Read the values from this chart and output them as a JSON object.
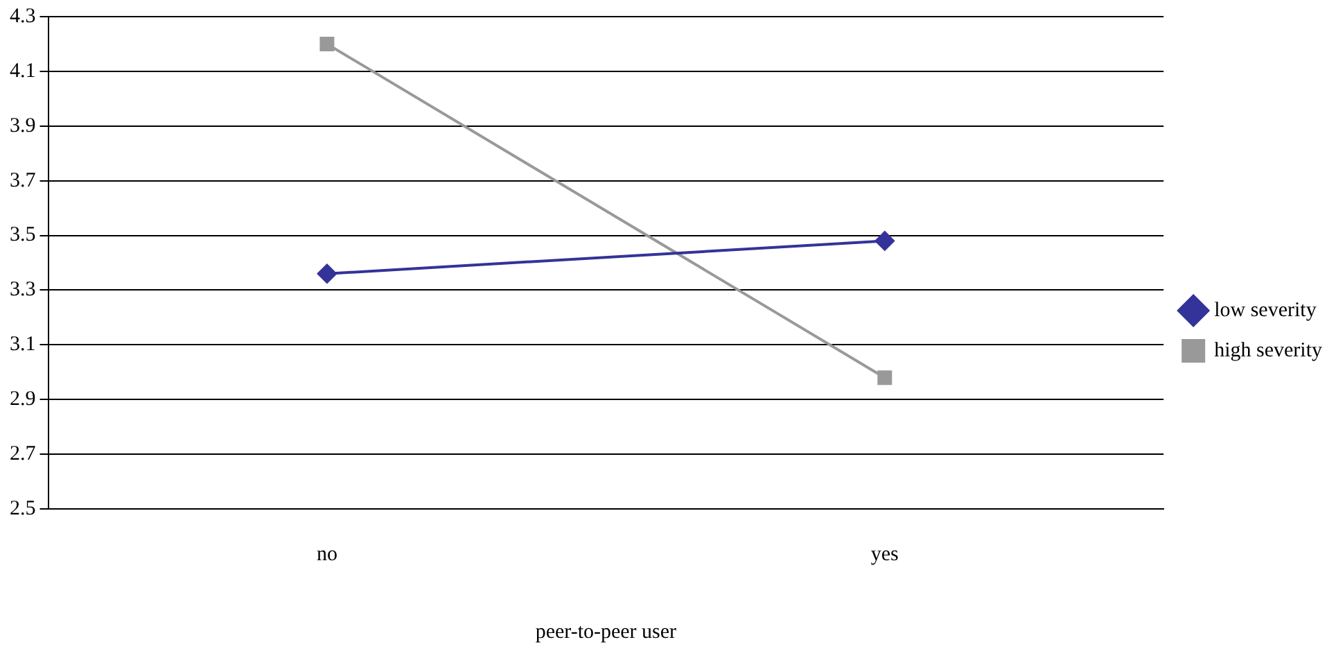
{
  "chart_data": {
    "type": "line",
    "xlabel": "peer-to-peer user",
    "categories": [
      "no",
      "yes"
    ],
    "series": [
      {
        "name": "low severity",
        "color": "#333399",
        "marker": "diamond",
        "values": [
          3.36,
          3.48
        ]
      },
      {
        "name": "high severity",
        "color": "#999999",
        "marker": "square",
        "values": [
          4.2,
          2.98
        ]
      }
    ],
    "ylim": [
      2.5,
      4.3
    ],
    "yticks": [
      2.5,
      2.7,
      2.9,
      3.1,
      3.3,
      3.5,
      3.7,
      3.9,
      4.1,
      4.3
    ],
    "grid": "y",
    "legend": "right",
    "line_style": "solid"
  }
}
